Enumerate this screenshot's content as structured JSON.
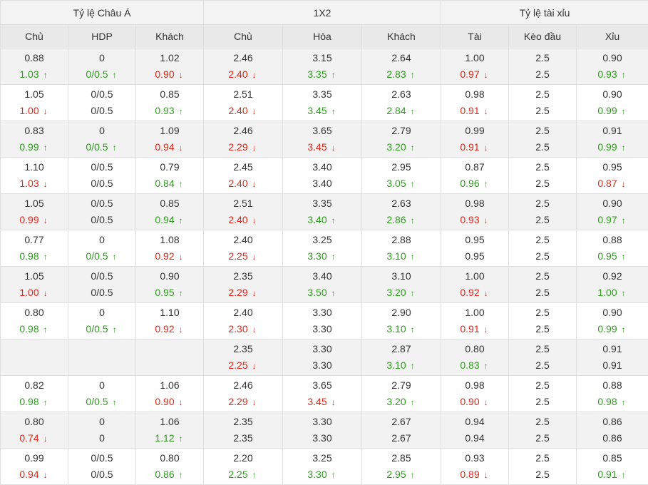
{
  "colors": {
    "up": "#2e9e1d",
    "down": "#e0281c",
    "header_bg": "#e9e9e9",
    "alt_row_bg": "#f2f2f2"
  },
  "groups": [
    "Tỷ lệ Châu Á",
    "1X2",
    "Tỷ lệ tài xỉu"
  ],
  "columns": [
    "Chủ",
    "HDP",
    "Khách",
    "Chủ",
    "Hòa",
    "Khách",
    "Tài",
    "Kèo đầu",
    "Xỉu"
  ],
  "rows": [
    {
      "cells": [
        {
          "o": "0.88",
          "c": "1.03",
          "d": "up"
        },
        {
          "o": "0",
          "c": "0/0.5",
          "d": "up"
        },
        {
          "o": "1.02",
          "c": "0.90",
          "d": "down"
        },
        {
          "o": "2.46",
          "c": "2.40",
          "d": "down"
        },
        {
          "o": "3.15",
          "c": "3.35",
          "d": "up"
        },
        {
          "o": "2.64",
          "c": "2.83",
          "d": "up"
        },
        {
          "o": "1.00",
          "c": "0.97",
          "d": "down"
        },
        {
          "o": "2.5",
          "c": "2.5",
          "d": ""
        },
        {
          "o": "0.90",
          "c": "0.93",
          "d": "up"
        }
      ]
    },
    {
      "cells": [
        {
          "o": "1.05",
          "c": "1.00",
          "d": "down"
        },
        {
          "o": "0/0.5",
          "c": "0/0.5",
          "d": ""
        },
        {
          "o": "0.85",
          "c": "0.93",
          "d": "up"
        },
        {
          "o": "2.51",
          "c": "2.40",
          "d": "down"
        },
        {
          "o": "3.35",
          "c": "3.45",
          "d": "up"
        },
        {
          "o": "2.63",
          "c": "2.84",
          "d": "up"
        },
        {
          "o": "0.98",
          "c": "0.91",
          "d": "down"
        },
        {
          "o": "2.5",
          "c": "2.5",
          "d": ""
        },
        {
          "o": "0.90",
          "c": "0.99",
          "d": "up"
        }
      ]
    },
    {
      "cells": [
        {
          "o": "0.83",
          "c": "0.99",
          "d": "up"
        },
        {
          "o": "0",
          "c": "0/0.5",
          "d": "up"
        },
        {
          "o": "1.09",
          "c": "0.94",
          "d": "down"
        },
        {
          "o": "2.46",
          "c": "2.29",
          "d": "down"
        },
        {
          "o": "3.65",
          "c": "3.45",
          "d": "down"
        },
        {
          "o": "2.79",
          "c": "3.20",
          "d": "up"
        },
        {
          "o": "0.99",
          "c": "0.91",
          "d": "down"
        },
        {
          "o": "2.5",
          "c": "2.5",
          "d": ""
        },
        {
          "o": "0.91",
          "c": "0.99",
          "d": "up"
        }
      ]
    },
    {
      "cells": [
        {
          "o": "1.10",
          "c": "1.03",
          "d": "down"
        },
        {
          "o": "0/0.5",
          "c": "0/0.5",
          "d": ""
        },
        {
          "o": "0.79",
          "c": "0.84",
          "d": "up"
        },
        {
          "o": "2.45",
          "c": "2.40",
          "d": "down"
        },
        {
          "o": "3.40",
          "c": "3.40",
          "d": ""
        },
        {
          "o": "2.95",
          "c": "3.05",
          "d": "up"
        },
        {
          "o": "0.87",
          "c": "0.96",
          "d": "up"
        },
        {
          "o": "2.5",
          "c": "2.5",
          "d": ""
        },
        {
          "o": "0.95",
          "c": "0.87",
          "d": "down"
        }
      ]
    },
    {
      "cells": [
        {
          "o": "1.05",
          "c": "0.99",
          "d": "down"
        },
        {
          "o": "0/0.5",
          "c": "0/0.5",
          "d": ""
        },
        {
          "o": "0.85",
          "c": "0.94",
          "d": "up"
        },
        {
          "o": "2.51",
          "c": "2.40",
          "d": "down"
        },
        {
          "o": "3.35",
          "c": "3.40",
          "d": "up"
        },
        {
          "o": "2.63",
          "c": "2.86",
          "d": "up"
        },
        {
          "o": "0.98",
          "c": "0.93",
          "d": "down"
        },
        {
          "o": "2.5",
          "c": "2.5",
          "d": ""
        },
        {
          "o": "0.90",
          "c": "0.97",
          "d": "up"
        }
      ]
    },
    {
      "cells": [
        {
          "o": "0.77",
          "c": "0.98",
          "d": "up"
        },
        {
          "o": "0",
          "c": "0/0.5",
          "d": "up"
        },
        {
          "o": "1.08",
          "c": "0.92",
          "d": "down"
        },
        {
          "o": "2.40",
          "c": "2.25",
          "d": "down"
        },
        {
          "o": "3.25",
          "c": "3.30",
          "d": "up"
        },
        {
          "o": "2.88",
          "c": "3.10",
          "d": "up"
        },
        {
          "o": "0.95",
          "c": "0.95",
          "d": ""
        },
        {
          "o": "2.5",
          "c": "2.5",
          "d": ""
        },
        {
          "o": "0.88",
          "c": "0.95",
          "d": "up"
        }
      ]
    },
    {
      "cells": [
        {
          "o": "1.05",
          "c": "1.00",
          "d": "down"
        },
        {
          "o": "0/0.5",
          "c": "0/0.5",
          "d": ""
        },
        {
          "o": "0.90",
          "c": "0.95",
          "d": "up"
        },
        {
          "o": "2.35",
          "c": "2.29",
          "d": "down"
        },
        {
          "o": "3.40",
          "c": "3.50",
          "d": "up"
        },
        {
          "o": "3.10",
          "c": "3.20",
          "d": "up"
        },
        {
          "o": "1.00",
          "c": "0.92",
          "d": "down"
        },
        {
          "o": "2.5",
          "c": "2.5",
          "d": ""
        },
        {
          "o": "0.92",
          "c": "1.00",
          "d": "up"
        }
      ]
    },
    {
      "cells": [
        {
          "o": "0.80",
          "c": "0.98",
          "d": "up"
        },
        {
          "o": "0",
          "c": "0/0.5",
          "d": "up"
        },
        {
          "o": "1.10",
          "c": "0.92",
          "d": "down"
        },
        {
          "o": "2.40",
          "c": "2.30",
          "d": "down"
        },
        {
          "o": "3.30",
          "c": "3.30",
          "d": ""
        },
        {
          "o": "2.90",
          "c": "3.10",
          "d": "up"
        },
        {
          "o": "1.00",
          "c": "0.91",
          "d": "down"
        },
        {
          "o": "2.5",
          "c": "2.5",
          "d": ""
        },
        {
          "o": "0.90",
          "c": "0.99",
          "d": "up"
        }
      ]
    },
    {
      "cells": [
        {
          "o": "",
          "c": "",
          "d": ""
        },
        {
          "o": "",
          "c": "",
          "d": ""
        },
        {
          "o": "",
          "c": "",
          "d": ""
        },
        {
          "o": "2.35",
          "c": "2.25",
          "d": "down"
        },
        {
          "o": "3.30",
          "c": "3.30",
          "d": ""
        },
        {
          "o": "2.87",
          "c": "3.10",
          "d": "up"
        },
        {
          "o": "0.80",
          "c": "0.83",
          "d": "up"
        },
        {
          "o": "2.5",
          "c": "2.5",
          "d": ""
        },
        {
          "o": "0.91",
          "c": "0.91",
          "d": ""
        }
      ]
    },
    {
      "cells": [
        {
          "o": "0.82",
          "c": "0.98",
          "d": "up"
        },
        {
          "o": "0",
          "c": "0/0.5",
          "d": "up"
        },
        {
          "o": "1.06",
          "c": "0.90",
          "d": "down"
        },
        {
          "o": "2.46",
          "c": "2.29",
          "d": "down"
        },
        {
          "o": "3.65",
          "c": "3.45",
          "d": "down"
        },
        {
          "o": "2.79",
          "c": "3.20",
          "d": "up"
        },
        {
          "o": "0.98",
          "c": "0.90",
          "d": "down"
        },
        {
          "o": "2.5",
          "c": "2.5",
          "d": ""
        },
        {
          "o": "0.88",
          "c": "0.98",
          "d": "up"
        }
      ]
    },
    {
      "cells": [
        {
          "o": "0.80",
          "c": "0.74",
          "d": "down"
        },
        {
          "o": "0",
          "c": "0",
          "d": ""
        },
        {
          "o": "1.06",
          "c": "1.12",
          "d": "up"
        },
        {
          "o": "2.35",
          "c": "2.35",
          "d": ""
        },
        {
          "o": "3.30",
          "c": "3.30",
          "d": ""
        },
        {
          "o": "2.67",
          "c": "2.67",
          "d": ""
        },
        {
          "o": "0.94",
          "c": "0.94",
          "d": ""
        },
        {
          "o": "2.5",
          "c": "2.5",
          "d": ""
        },
        {
          "o": "0.86",
          "c": "0.86",
          "d": ""
        }
      ]
    },
    {
      "cells": [
        {
          "o": "0.99",
          "c": "0.94",
          "d": "down"
        },
        {
          "o": "0/0.5",
          "c": "0/0.5",
          "d": ""
        },
        {
          "o": "0.80",
          "c": "0.86",
          "d": "up"
        },
        {
          "o": "2.20",
          "c": "2.25",
          "d": "up"
        },
        {
          "o": "3.25",
          "c": "3.30",
          "d": "up"
        },
        {
          "o": "2.85",
          "c": "2.95",
          "d": "up"
        },
        {
          "o": "0.93",
          "c": "0.89",
          "d": "down"
        },
        {
          "o": "2.5",
          "c": "2.5",
          "d": ""
        },
        {
          "o": "0.85",
          "c": "0.91",
          "d": "up"
        }
      ]
    }
  ]
}
